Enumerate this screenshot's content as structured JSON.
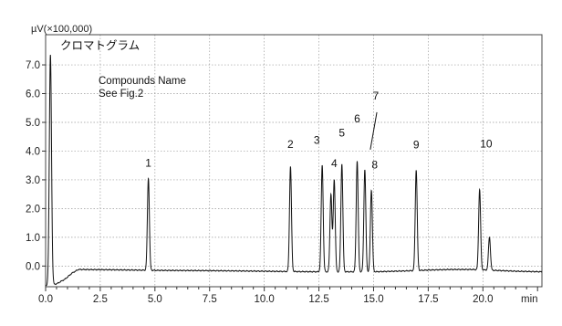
{
  "chart_data": {
    "type": "line",
    "title": "クロマトグラム",
    "ylabel": "µV(×100,000)",
    "xlabel": "min",
    "xlim": [
      0,
      22.7
    ],
    "ylim": [
      -0.72,
      8.05
    ],
    "xticks": [
      0.0,
      2.5,
      5.0,
      7.5,
      10.0,
      12.5,
      15.0,
      17.5,
      20.0
    ],
    "yticks": [
      0.0,
      1.0,
      2.0,
      3.0,
      4.0,
      5.0,
      6.0,
      7.0
    ],
    "xtick_labels": [
      "0.0",
      "2.5",
      "5.0",
      "7.5",
      "10.0",
      "12.5",
      "15.0",
      "17.5",
      "20.0"
    ],
    "ytick_labels": [
      "0.0",
      "1.0",
      "2.0",
      "3.0",
      "4.0",
      "5.0",
      "6.0",
      "7.0"
    ],
    "grid": true,
    "annotation": {
      "line1": "Compounds Name",
      "line2": "See Fig.2"
    },
    "baseline": [
      [
        0.0,
        -0.7
      ],
      [
        0.5,
        -0.62
      ],
      [
        0.9,
        -0.45
      ],
      [
        1.2,
        -0.25
      ],
      [
        1.5,
        -0.12
      ],
      [
        3.0,
        -0.13
      ],
      [
        5.0,
        -0.15
      ],
      [
        7.5,
        -0.16
      ],
      [
        10.0,
        -0.18
      ],
      [
        11.0,
        -0.19
      ],
      [
        12.5,
        -0.2
      ],
      [
        15.0,
        -0.2
      ],
      [
        16.5,
        -0.17
      ],
      [
        17.5,
        -0.14
      ],
      [
        18.5,
        -0.12
      ],
      [
        19.5,
        -0.12
      ],
      [
        20.5,
        -0.15
      ],
      [
        21.5,
        -0.18
      ],
      [
        22.7,
        -0.2
      ]
    ],
    "solvent_front": {
      "x": 0.22,
      "height": 8.0
    },
    "peaks": [
      {
        "label": "1",
        "rt": 4.7,
        "height": 3.2,
        "label_offset": [
          0,
          -0.2
        ]
      },
      {
        "label": "2",
        "rt": 11.2,
        "height": 3.65,
        "label_offset": [
          0,
          -0.45
        ]
      },
      {
        "label": "3",
        "rt": 12.65,
        "height": 3.7,
        "label_offset": [
          -0.25,
          -0.55
        ]
      },
      {
        "label": "",
        "rt": 13.05,
        "height": 2.7,
        "label_offset": [
          0,
          0
        ]
      },
      {
        "label": "4",
        "rt": 13.2,
        "height": 3.2,
        "label_offset": [
          0,
          -0.25
        ]
      },
      {
        "label": "5",
        "rt": 13.55,
        "height": 3.75,
        "label_offset": [
          0,
          -0.75
        ]
      },
      {
        "label": "6",
        "rt": 14.25,
        "height": 3.85,
        "label_offset": [
          0,
          -1.15
        ]
      },
      {
        "label": "",
        "rt": 14.6,
        "height": 3.55,
        "label_offset": [
          0,
          0
        ]
      },
      {
        "label": "",
        "rt": 14.9,
        "height": 2.85,
        "label_offset": [
          0,
          0
        ]
      },
      {
        "label": "9",
        "rt": 16.95,
        "height": 3.5,
        "label_offset": [
          0,
          -0.55
        ]
      },
      {
        "label": "10",
        "rt": 19.85,
        "height": 2.8,
        "label_offset": [
          0.3,
          -1.25
        ]
      },
      {
        "label": "",
        "rt": 20.3,
        "height": 1.15,
        "label_offset": [
          0,
          0
        ]
      }
    ],
    "extra_labels": [
      {
        "label": "7",
        "x": 15.1,
        "y": 5.8
      },
      {
        "label": "8",
        "x": 15.05,
        "y": 3.4
      }
    ],
    "leader_line": {
      "from": [
        15.15,
        5.35
      ],
      "to": [
        14.85,
        4.05
      ]
    }
  }
}
